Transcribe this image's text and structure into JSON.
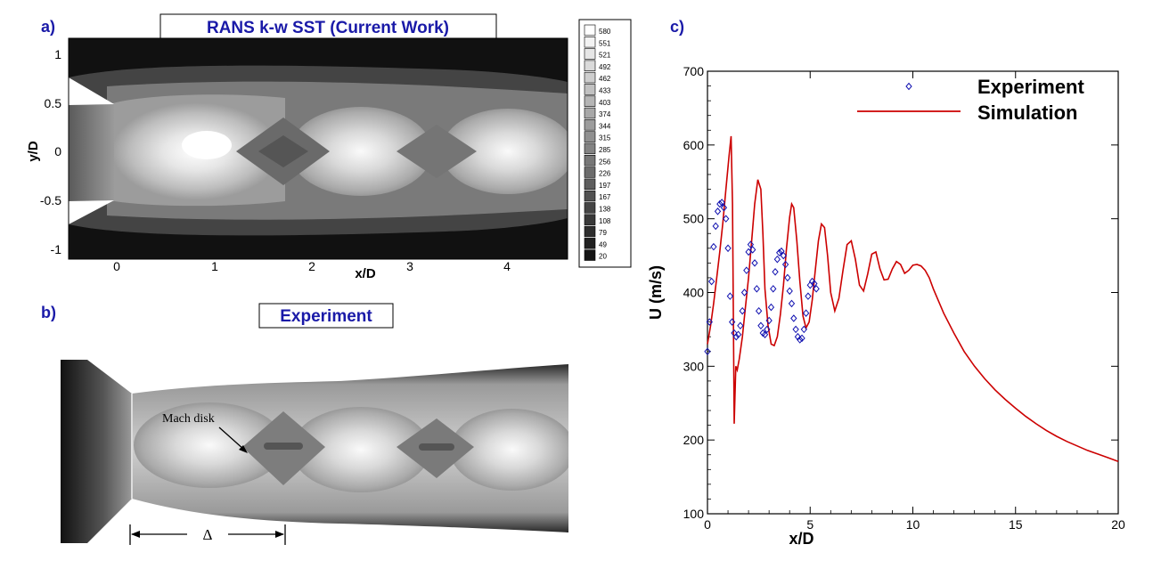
{
  "panels": {
    "a": {
      "label": "a)",
      "title": "RANS k-w SST (Current Work)",
      "xlabel": "x/D",
      "ylabel": "y/D",
      "xticks": [
        "0",
        "1",
        "2",
        "3",
        "4"
      ],
      "yticks": [
        "1",
        "0.5",
        "0",
        "-0.5",
        "-1"
      ],
      "colorbar": [
        "580",
        "551",
        "521",
        "492",
        "462",
        "433",
        "403",
        "374",
        "344",
        "315",
        "285",
        "256",
        "226",
        "197",
        "167",
        "138",
        "108",
        "79",
        "49",
        "20"
      ]
    },
    "b": {
      "label": "b)",
      "title": "Experiment",
      "annotation": "Mach disk",
      "delta_symbol": "Δ"
    },
    "c": {
      "label": "c)"
    }
  },
  "colors": {
    "label_blue": "#1a1aa8",
    "simulation": "#cc0000",
    "experiment": "#1010b0"
  },
  "chart_data": {
    "type": "line",
    "xlabel": "x/D",
    "ylabel": "U (m/s)",
    "xlim": [
      0,
      20
    ],
    "ylim": [
      100,
      700
    ],
    "xticks": [
      0,
      5,
      10,
      15,
      20
    ],
    "yticks": [
      100,
      200,
      300,
      400,
      500,
      600,
      700
    ],
    "legend_position": "top-right",
    "series": [
      {
        "name": "Experiment",
        "kind": "scatter",
        "x": [
          0.0,
          0.1,
          0.2,
          0.3,
          0.4,
          0.5,
          0.6,
          0.7,
          0.8,
          0.9,
          1.0,
          1.1,
          1.2,
          1.3,
          1.4,
          1.5,
          1.6,
          1.7,
          1.8,
          1.9,
          2.0,
          2.1,
          2.2,
          2.3,
          2.4,
          2.5,
          2.6,
          2.7,
          2.8,
          2.9,
          3.0,
          3.1,
          3.2,
          3.3,
          3.4,
          3.5,
          3.6,
          3.7,
          3.8,
          3.9,
          4.0,
          4.1,
          4.2,
          4.3,
          4.4,
          4.5,
          4.6,
          4.7,
          4.8,
          4.9,
          5.0,
          5.1,
          5.2,
          5.3
        ],
        "y": [
          320,
          360,
          415,
          462,
          490,
          510,
          520,
          522,
          515,
          500,
          460,
          395,
          360,
          345,
          340,
          343,
          355,
          375,
          400,
          430,
          455,
          465,
          458,
          440,
          405,
          375,
          355,
          345,
          343,
          350,
          362,
          380,
          405,
          428,
          445,
          454,
          456,
          450,
          438,
          420,
          402,
          385,
          365,
          350,
          340,
          336,
          338,
          350,
          372,
          395,
          410,
          415,
          412,
          405
        ]
      },
      {
        "name": "Simulation",
        "kind": "line",
        "x": [
          0.0,
          0.15,
          0.3,
          0.45,
          0.6,
          0.75,
          0.9,
          1.05,
          1.15,
          1.22,
          1.3,
          1.38,
          1.45,
          1.55,
          1.7,
          1.85,
          2.0,
          2.15,
          2.3,
          2.45,
          2.6,
          2.7,
          2.8,
          2.95,
          3.1,
          3.25,
          3.4,
          3.55,
          3.7,
          3.85,
          4.0,
          4.1,
          4.2,
          4.35,
          4.5,
          4.65,
          4.8,
          4.95,
          5.1,
          5.25,
          5.4,
          5.55,
          5.7,
          5.85,
          6.0,
          6.2,
          6.4,
          6.6,
          6.8,
          7.0,
          7.2,
          7.4,
          7.6,
          7.8,
          8.0,
          8.2,
          8.4,
          8.6,
          8.8,
          9.0,
          9.2,
          9.4,
          9.6,
          9.8,
          10.0,
          10.2,
          10.4,
          10.6,
          10.8,
          11.0,
          11.5,
          12.0,
          12.5,
          13.0,
          13.5,
          14.0,
          14.5,
          15.0,
          15.5,
          16.0,
          16.5,
          17.0,
          17.5,
          18.0,
          18.5,
          19.0,
          19.5,
          20.0
        ],
        "y": [
          330,
          355,
          385,
          420,
          455,
          495,
          540,
          585,
          612,
          520,
          222,
          300,
          295,
          310,
          340,
          380,
          420,
          470,
          520,
          553,
          540,
          480,
          405,
          355,
          330,
          328,
          340,
          370,
          410,
          460,
          502,
          520,
          515,
          470,
          415,
          368,
          352,
          360,
          390,
          430,
          470,
          493,
          488,
          450,
          400,
          375,
          392,
          430,
          465,
          470,
          445,
          410,
          402,
          425,
          452,
          455,
          432,
          417,
          418,
          432,
          442,
          438,
          426,
          430,
          437,
          438,
          436,
          430,
          420,
          405,
          372,
          345,
          320,
          300,
          283,
          268,
          255,
          243,
          232,
          222,
          213,
          205,
          198,
          192,
          186,
          181,
          176,
          171
        ]
      }
    ]
  }
}
